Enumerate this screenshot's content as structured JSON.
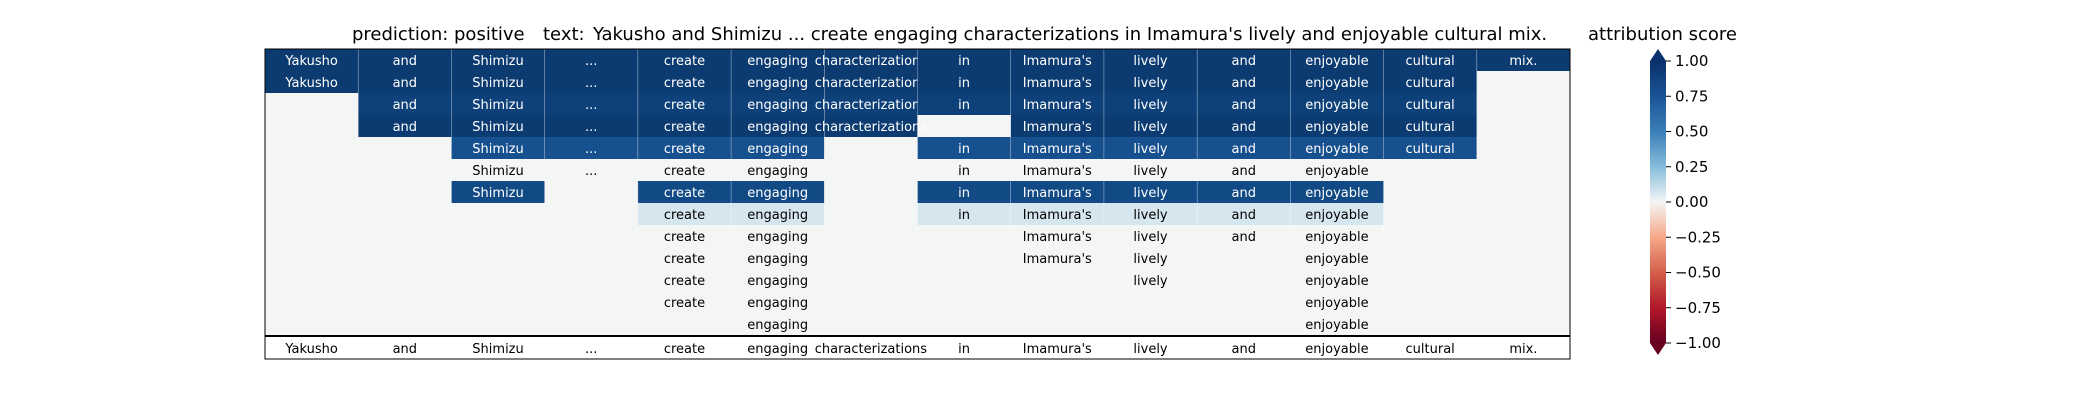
{
  "chart_data": {
    "type": "heatmap",
    "header": {
      "prediction_label": "prediction:",
      "prediction_value": "positive",
      "text_label": "text:",
      "text_value": "Yakusho and Shimizu ... create engaging characterizations in Imamura's lively and enjoyable cultural mix."
    },
    "tokens": [
      "Yakusho",
      "and",
      "Shimizu",
      "...",
      "create",
      "engaging",
      "characterizations",
      "in",
      "Imamura's",
      "lively",
      "and",
      "enjoyable",
      "cultural",
      "mix."
    ],
    "rows": [
      {
        "start": 0,
        "end": 13,
        "scores": [
          0.95,
          0.95,
          0.95,
          0.95,
          0.95,
          0.95,
          0.95,
          0.95,
          0.95,
          0.95,
          0.95,
          0.95,
          0.95,
          0.95
        ]
      },
      {
        "start": 0,
        "end": 12,
        "scores": [
          0.95,
          0.95,
          0.95,
          0.95,
          0.95,
          0.95,
          0.95,
          0.95,
          0.95,
          0.95,
          0.95,
          0.95,
          0.95
        ]
      },
      {
        "start": 1,
        "end": 12,
        "scores": [
          0.92,
          0.92,
          0.92,
          0.92,
          0.92,
          0.92,
          0.92,
          0.92,
          0.92,
          0.92,
          0.92,
          0.92
        ]
      },
      {
        "start": 1,
        "end": 12,
        "scores": [
          0.95,
          0.95,
          0.95,
          0.95,
          0.95,
          0.95,
          null,
          0.95,
          0.95,
          0.95,
          0.95,
          0.95
        ]
      },
      {
        "start": 2,
        "end": 12,
        "scores": [
          0.85,
          0.85,
          0.85,
          0.85,
          null,
          0.85,
          0.85,
          0.85,
          0.85,
          0.85,
          0.85
        ]
      },
      {
        "start": 2,
        "end": 11,
        "scores": [
          0.0,
          0.0,
          0.0,
          0.0,
          null,
          0.0,
          0.0,
          0.0,
          0.0,
          0.0
        ]
      },
      {
        "start": 2,
        "end": 11,
        "scores": [
          0.88,
          null,
          0.88,
          0.88,
          null,
          0.88,
          0.88,
          0.88,
          0.88,
          0.88
        ]
      },
      {
        "start": 4,
        "end": 11,
        "scores": [
          0.08,
          0.08,
          null,
          0.08,
          0.08,
          0.08,
          0.08,
          0.08
        ]
      },
      {
        "start": 4,
        "end": 11,
        "scores": [
          0.0,
          0.0,
          null,
          null,
          0.0,
          0.0,
          0.0,
          0.0
        ]
      },
      {
        "start": 4,
        "end": 11,
        "scores": [
          0.0,
          0.0,
          null,
          null,
          0.0,
          0.0,
          null,
          0.0
        ]
      },
      {
        "start": 4,
        "end": 11,
        "scores": [
          0.0,
          0.0,
          null,
          null,
          null,
          0.0,
          null,
          0.0
        ]
      },
      {
        "start": 4,
        "end": 11,
        "scores": [
          0.0,
          0.0,
          null,
          null,
          null,
          null,
          null,
          0.0
        ]
      },
      {
        "start": 5,
        "end": 11,
        "scores": [
          0.0,
          null,
          null,
          null,
          null,
          null,
          0.0
        ]
      }
    ],
    "colorbar": {
      "label": "attribution score",
      "ticks": [
        "1.00",
        "0.75",
        "0.50",
        "0.25",
        "0.00",
        "−0.25",
        "−0.50",
        "−0.75",
        "−1.00"
      ],
      "tick_values": [
        1.0,
        0.75,
        0.5,
        0.25,
        0.0,
        -0.25,
        -0.5,
        -0.75,
        -1.0
      ],
      "range": [
        -1.0,
        1.0
      ],
      "colormap": "RdBu"
    },
    "colors": {
      "background_cell": "#f4f5f5",
      "grid": "#ffffff"
    }
  }
}
